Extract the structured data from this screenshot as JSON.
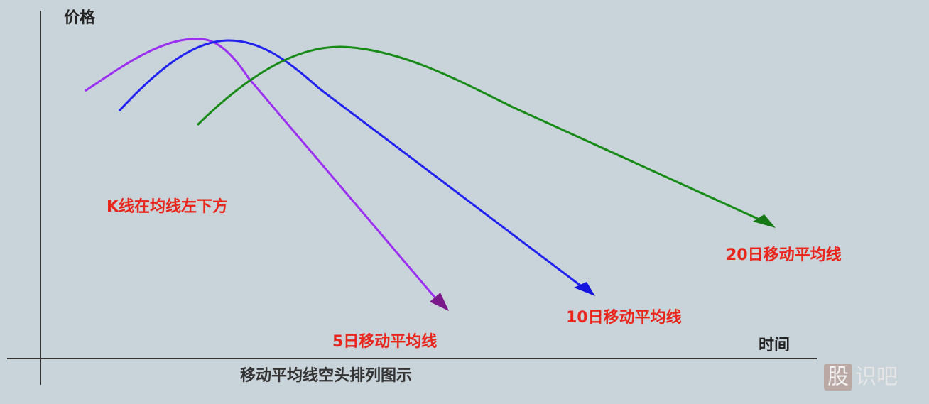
{
  "y_axis_label": "价格",
  "x_axis_label": "时间",
  "annotation": "K线在均线左下方",
  "lines": [
    {
      "label": "5日移动平均线"
    },
    {
      "label": "10日移动平均线"
    },
    {
      "label": "20日移动平均线"
    }
  ],
  "caption": "移动平均线空头排列图示",
  "watermark": {
    "boxed": "股",
    "text": "识吧"
  }
}
